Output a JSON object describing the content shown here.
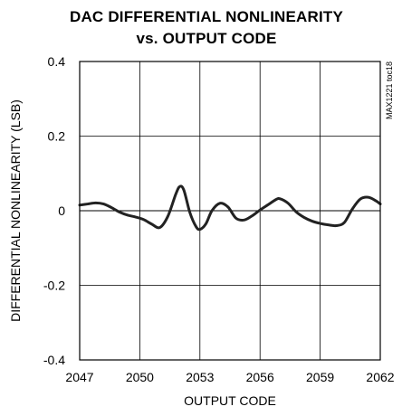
{
  "chart_data": {
    "type": "line",
    "title": "DAC DIFFERENTIAL NONLINEARITY",
    "subtitle": "vs. OUTPUT CODE",
    "xlabel": "OUTPUT CODE",
    "ylabel": "DIFFERENTIAL NONLINEARITY (LSB)",
    "figure_code": "MAX1221 toc18",
    "xlim": [
      2047,
      2062
    ],
    "ylim": [
      -0.4,
      0.4
    ],
    "x_ticks": [
      2047,
      2050,
      2053,
      2056,
      2059,
      2062
    ],
    "x_tick_labels": [
      "2047",
      "2050",
      "2053",
      "2056",
      "2059",
      "2062"
    ],
    "y_ticks": [
      0.4,
      0.2,
      0,
      -0.2,
      -0.4
    ],
    "y_tick_labels": [
      "0.4",
      "0.2",
      "0",
      "-0.2",
      "-0.4"
    ],
    "grid": true,
    "line_color": "#222222",
    "series": [
      {
        "x": [
          2047.0,
          2047.4,
          2047.8,
          2048.2,
          2048.6,
          2049.0,
          2049.4,
          2049.8,
          2050.2,
          2050.6,
          2051.0,
          2051.4,
          2051.8,
          2052.0,
          2052.2,
          2052.5,
          2052.8,
          2053.0,
          2053.3,
          2053.6,
          2054.0,
          2054.4,
          2054.8,
          2055.2,
          2055.6,
          2056.0,
          2056.4,
          2056.8,
          2057.0,
          2057.4,
          2057.8,
          2058.2,
          2058.6,
          2059.0,
          2059.4,
          2059.8,
          2060.2,
          2060.6,
          2061.0,
          2061.4,
          2061.8,
          2062.0
        ],
        "y": [
          0.015,
          0.018,
          0.021,
          0.018,
          0.008,
          -0.004,
          -0.012,
          -0.017,
          -0.024,
          -0.036,
          -0.045,
          -0.015,
          0.045,
          0.065,
          0.055,
          -0.005,
          -0.042,
          -0.05,
          -0.035,
          0.0,
          0.02,
          0.01,
          -0.02,
          -0.025,
          -0.014,
          0.002,
          0.016,
          0.03,
          0.032,
          0.02,
          -0.003,
          -0.018,
          -0.028,
          -0.034,
          -0.038,
          -0.04,
          -0.032,
          0.004,
          0.031,
          0.036,
          0.026,
          0.018
        ]
      }
    ]
  }
}
